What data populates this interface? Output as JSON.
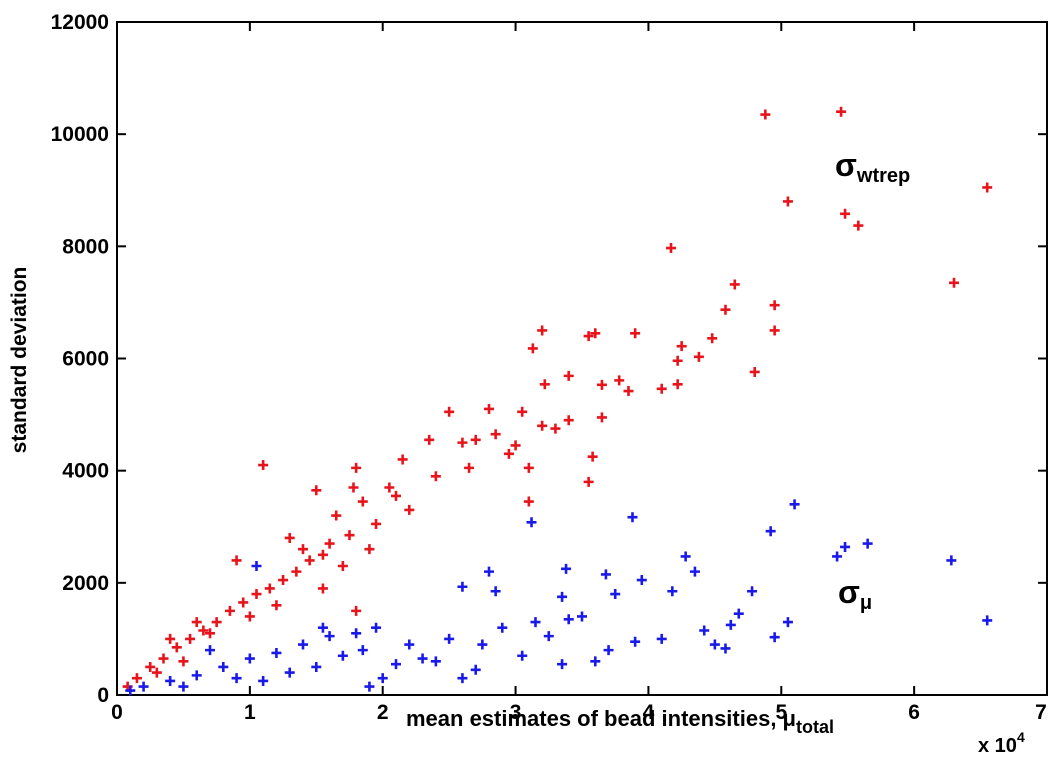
{
  "chart_data": {
    "type": "scatter",
    "x_label": {
      "main": "mean estimates of bead intensities, μ",
      "sub": "total"
    },
    "y_label": "standard deviation",
    "x_multiplier": {
      "base": "x 10",
      "exponent": "4"
    },
    "xlim": [
      0,
      7
    ],
    "xticks": [
      0,
      1,
      2,
      3,
      4,
      5,
      6,
      7
    ],
    "ylim": [
      0,
      12000
    ],
    "yticks": [
      0,
      2000,
      4000,
      6000,
      8000,
      10000,
      12000
    ],
    "grid": false,
    "annotations": [
      {
        "text": "σ",
        "sub": "wtrep",
        "color": "#e8141b"
      },
      {
        "text": "σ",
        "sub": "μ",
        "color": "#1a1ae8"
      }
    ],
    "series": [
      {
        "name": "σwtrep",
        "color": "#e8141b",
        "x": [
          4.88,
          5.45,
          6.55,
          5.05,
          5.48,
          5.58,
          4.17,
          6.3,
          4.65,
          4.95,
          4.95,
          4.58,
          4.48,
          3.2,
          3.6,
          3.9,
          3.55,
          3.13,
          4.25,
          4.22,
          4.38,
          4.1,
          4.22,
          4.8,
          3.78,
          3.65,
          3.22,
          3.4,
          3.85,
          3.65,
          3.58,
          3.55,
          3.1,
          3.1,
          3.3,
          3.4,
          3.05,
          2.8,
          2.5,
          2.6,
          2.7,
          2.85,
          2.95,
          2.35,
          2.15,
          1.8,
          1.1,
          1.5,
          1.78,
          1.85,
          2.05,
          1.65,
          1.95,
          1.75,
          1.6,
          1.55,
          1.45,
          1.35,
          1.25,
          1.15,
          1.05,
          0.95,
          0.85,
          0.75,
          0.65,
          0.55,
          0.45,
          0.35,
          0.25,
          0.15,
          0.08,
          1.4,
          1.7,
          1.2,
          0.9,
          2.2,
          2.4,
          2.65,
          3.2,
          3.0,
          1.8,
          1.55,
          0.7,
          0.5,
          0.3,
          1.0,
          1.3,
          1.9,
          2.1,
          0.6,
          0.4
        ],
        "values": [
          10350,
          10400,
          9050,
          8800,
          8580,
          8370,
          7970,
          7350,
          7320,
          6950,
          6500,
          6870,
          6360,
          6500,
          6450,
          6450,
          6400,
          6180,
          6220,
          5960,
          6030,
          5460,
          5540,
          5760,
          5610,
          5530,
          5540,
          5690,
          5420,
          4950,
          4250,
          3800,
          3450,
          4050,
          4750,
          4900,
          5050,
          5100,
          5050,
          4500,
          4550,
          4650,
          4300,
          4550,
          4200,
          4050,
          4100,
          3650,
          3700,
          3450,
          3700,
          3200,
          3050,
          2850,
          2700,
          2500,
          2400,
          2200,
          2050,
          1900,
          1800,
          1650,
          1500,
          1300,
          1150,
          1000,
          850,
          650,
          500,
          300,
          150,
          2600,
          2300,
          1600,
          2400,
          3300,
          3900,
          4050,
          4800,
          4450,
          1500,
          1900,
          1100,
          600,
          400,
          1400,
          2800,
          2600,
          3550,
          1300,
          1000
        ]
      },
      {
        "name": "σμ",
        "color": "#1a1ae8",
        "x": [
          5.1,
          3.12,
          3.88,
          4.92,
          5.65,
          5.48,
          5.42,
          6.28,
          4.28,
          4.35,
          3.38,
          3.68,
          3.95,
          2.8,
          2.6,
          2.85,
          3.35,
          3.75,
          4.18,
          4.78,
          4.68,
          4.62,
          4.95,
          5.05,
          6.55,
          4.42,
          4.5,
          4.58,
          4.1,
          3.9,
          3.7,
          3.5,
          3.4,
          3.25,
          3.35,
          3.05,
          2.9,
          2.7,
          2.6,
          2.4,
          2.5,
          2.2,
          2.0,
          1.9,
          1.95,
          1.8,
          1.6,
          1.4,
          1.2,
          1.0,
          0.8,
          0.6,
          0.4,
          0.2,
          0.1,
          1.05,
          1.5,
          1.7,
          1.3,
          0.9,
          0.5,
          2.3,
          1.85,
          2.1,
          0.7,
          1.1,
          1.55,
          3.15,
          3.6,
          2.75
        ],
        "values": [
          3400,
          3080,
          3170,
          2920,
          2700,
          2640,
          2470,
          2400,
          2470,
          2200,
          2250,
          2150,
          2050,
          2200,
          1930,
          1850,
          1750,
          1800,
          1850,
          1850,
          1450,
          1250,
          1030,
          1300,
          1330,
          1150,
          900,
          830,
          1000,
          950,
          800,
          1400,
          1350,
          1050,
          550,
          700,
          1200,
          450,
          300,
          600,
          1000,
          900,
          300,
          150,
          1200,
          1100,
          1050,
          900,
          750,
          650,
          500,
          350,
          250,
          150,
          80,
          2300,
          500,
          700,
          400,
          300,
          150,
          650,
          800,
          550,
          800,
          250,
          1200,
          1300,
          600,
          900
        ]
      }
    ]
  }
}
